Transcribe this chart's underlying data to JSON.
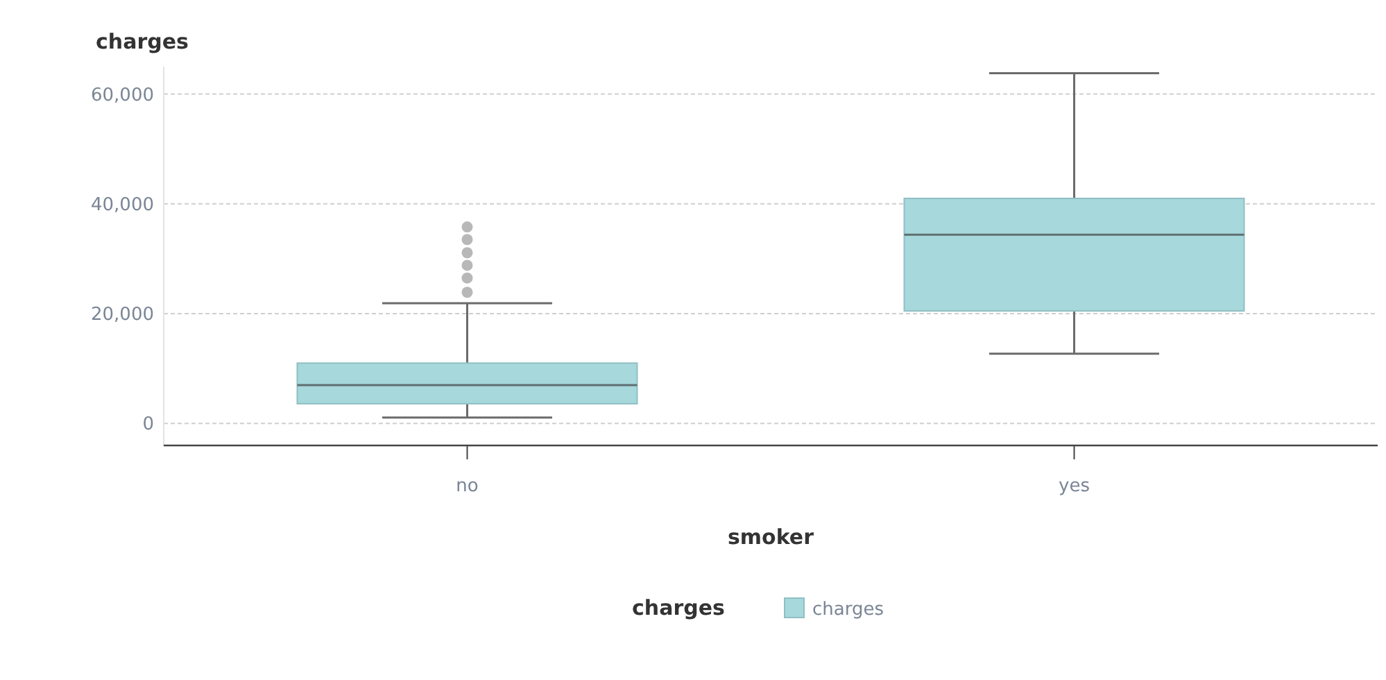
{
  "chart_data": {
    "type": "box",
    "ylabel": "charges",
    "xlabel": "smoker",
    "legend_title": "charges",
    "legend": "bottom",
    "grid": "y",
    "categories": [
      "no",
      "yes"
    ],
    "series": [
      {
        "name": "charges",
        "color": "#a6d8dc",
        "boxes": [
          {
            "low": 1100,
            "q1": 3600,
            "median": 7000,
            "q3": 11000,
            "high": 21900,
            "outliers": [
              23900,
              26500,
              28800,
              31100,
              33500,
              35800
            ]
          },
          {
            "low": 12700,
            "q1": 20500,
            "median": 34400,
            "q3": 41000,
            "high": 63800
          }
        ]
      }
    ],
    "ylim": [
      -4000,
      65000
    ],
    "yticks": [
      {
        "value": 0,
        "label": "0"
      },
      {
        "value": 20000,
        "label": "20,000"
      },
      {
        "value": 40000,
        "label": "40,000"
      },
      {
        "value": 60000,
        "label": "60,000"
      }
    ]
  }
}
